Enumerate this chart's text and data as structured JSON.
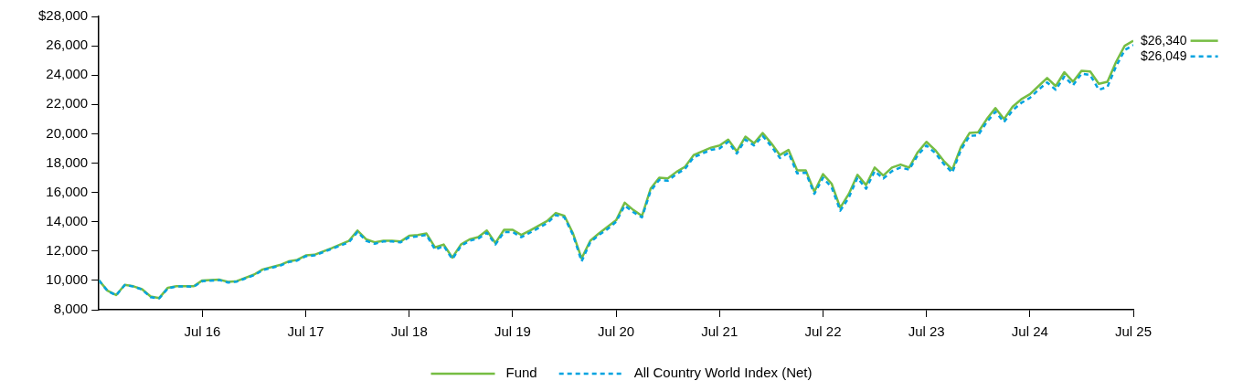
{
  "chart_data": {
    "type": "line",
    "x": [
      "2015-07",
      "2015-08",
      "2015-09",
      "2015-10",
      "2015-11",
      "2015-12",
      "2016-01",
      "2016-02",
      "2016-03",
      "2016-04",
      "2016-05",
      "2016-06",
      "2016-07",
      "2016-09",
      "2016-10",
      "2016-11",
      "2017-01",
      "2017-02",
      "2017-04",
      "2017-05",
      "2017-06",
      "2017-07",
      "2017-08",
      "2017-10",
      "2017-12",
      "2018-01",
      "2018-02",
      "2018-03",
      "2018-04",
      "2018-05",
      "2018-06",
      "2018-07",
      "2018-08",
      "2018-09",
      "2018-10",
      "2018-11",
      "2018-12",
      "2019-01",
      "2019-02",
      "2019-03",
      "2019-04",
      "2019-05",
      "2019-06",
      "2019-07",
      "2019-08",
      "2019-09",
      "2019-11",
      "2019-12",
      "2020-01",
      "2020-02",
      "2020-03",
      "2020-04",
      "2020-05",
      "2020-06",
      "2020-07",
      "2020-08",
      "2020-09",
      "2020-10",
      "2020-11",
      "2020-12",
      "2021-01",
      "2021-02",
      "2021-03",
      "2021-04",
      "2021-05",
      "2021-06",
      "2021-07",
      "2021-08",
      "2021-09",
      "2021-10",
      "2021-11",
      "2021-12",
      "2022-01",
      "2022-02",
      "2022-03",
      "2022-04",
      "2022-05",
      "2022-06",
      "2022-07",
      "2022-08",
      "2022-09",
      "2022-10",
      "2022-11",
      "2022-12",
      "2023-01",
      "2023-02",
      "2023-03",
      "2023-04",
      "2023-05",
      "2023-06",
      "2023-07",
      "2023-08",
      "2023-09",
      "2023-10",
      "2023-11",
      "2023-12",
      "2024-01",
      "2024-02",
      "2024-03",
      "2024-04",
      "2024-05",
      "2024-06",
      "2024-07",
      "2024-08",
      "2024-09",
      "2024-10",
      "2024-11",
      "2024-12",
      "2025-01",
      "2025-02",
      "2025-03",
      "2025-04",
      "2025-05",
      "2025-06",
      "2025-07"
    ],
    "series": [
      {
        "name": "Fund",
        "color": "#76bd43",
        "line_style": "solid",
        "values": [
          10000,
          9300,
          9000,
          9700,
          9600,
          9400,
          8900,
          8800,
          9500,
          9600,
          9600,
          9600,
          10000,
          10050,
          9900,
          9950,
          10400,
          10750,
          11050,
          11300,
          11400,
          11700,
          11750,
          12200,
          12700,
          13400,
          12800,
          12600,
          12700,
          12700,
          12650,
          13050,
          13100,
          13200,
          12250,
          12450,
          11550,
          12450,
          12800,
          12950,
          13400,
          12550,
          13450,
          13450,
          13100,
          13400,
          14050,
          14600,
          14400,
          13200,
          11500,
          12700,
          13200,
          13650,
          14100,
          15300,
          14800,
          14400,
          16250,
          17000,
          16950,
          17400,
          17750,
          18550,
          18800,
          19050,
          19200,
          19600,
          18800,
          19800,
          19350,
          20050,
          19350,
          18550,
          18900,
          17500,
          17500,
          16050,
          17250,
          16600,
          14950,
          15900,
          17200,
          16500,
          17700,
          17150,
          17700,
          17900,
          17700,
          18750,
          19450,
          18900,
          18150,
          17550,
          19100,
          20050,
          20100,
          21000,
          21750,
          21000,
          21850,
          22350,
          22700,
          23250,
          23800,
          23250,
          24200,
          23550,
          24300,
          24250,
          23400,
          23550,
          24900,
          26000,
          26340
        ]
      },
      {
        "name": "All Country World Index (Net)",
        "color": "#00a3e0",
        "line_style": "dashed",
        "values": [
          10000,
          9280,
          8980,
          9680,
          9580,
          9380,
          8850,
          8780,
          9460,
          9580,
          9600,
          9560,
          9950,
          10020,
          9850,
          9920,
          10350,
          10700,
          11000,
          11250,
          11350,
          11650,
          11700,
          12150,
          12600,
          13300,
          12700,
          12500,
          12650,
          12650,
          12600,
          12950,
          13000,
          13100,
          12100,
          12350,
          11450,
          12350,
          12700,
          12850,
          13250,
          12450,
          13300,
          13300,
          12950,
          13250,
          13900,
          14450,
          14300,
          13100,
          11300,
          12600,
          13100,
          13500,
          14000,
          15100,
          14650,
          14300,
          16100,
          16850,
          16800,
          17250,
          17600,
          18400,
          18650,
          18900,
          19000,
          19450,
          18650,
          19600,
          19200,
          19850,
          19150,
          18350,
          18700,
          17300,
          17350,
          15900,
          17000,
          16350,
          14750,
          15650,
          17000,
          16250,
          17450,
          16950,
          17450,
          17700,
          17550,
          18550,
          19200,
          18700,
          17950,
          17350,
          18900,
          19850,
          19900,
          20800,
          21500,
          20800,
          21600,
          22100,
          22450,
          23000,
          23500,
          23000,
          23900,
          23300,
          24100,
          24000,
          23000,
          23200,
          24600,
          25700,
          26049
        ]
      }
    ],
    "xlim": [
      "2015-07",
      "2025-07"
    ],
    "xticks": [
      {
        "value": "2016-07",
        "label": "Jul 16"
      },
      {
        "value": "2017-07",
        "label": "Jul 17"
      },
      {
        "value": "2018-07",
        "label": "Jul 18"
      },
      {
        "value": "2019-07",
        "label": "Jul 19"
      },
      {
        "value": "2020-07",
        "label": "Jul 20"
      },
      {
        "value": "2021-07",
        "label": "Jul 21"
      },
      {
        "value": "2022-07",
        "label": "Jul 22"
      },
      {
        "value": "2023-07",
        "label": "Jul 23"
      },
      {
        "value": "2024-07",
        "label": "Jul 24"
      },
      {
        "value": "2025-07",
        "label": "Jul 25"
      }
    ],
    "ylim": [
      8000,
      28000
    ],
    "yticks": [
      {
        "value": 8000,
        "label": "8,000"
      },
      {
        "value": 10000,
        "label": "10,000"
      },
      {
        "value": 12000,
        "label": "12,000"
      },
      {
        "value": 14000,
        "label": "14,000"
      },
      {
        "value": 16000,
        "label": "16,000"
      },
      {
        "value": 18000,
        "label": "18,000"
      },
      {
        "value": 20000,
        "label": "20,000"
      },
      {
        "value": 22000,
        "label": "22,000"
      },
      {
        "value": 24000,
        "label": "24,000"
      },
      {
        "value": 26000,
        "label": "26,000"
      },
      {
        "value": 28000,
        "label": "$28,000"
      }
    ],
    "annotations": [
      {
        "text": "$26,340",
        "x": "2025-07",
        "y": 26340
      },
      {
        "text": "$26,049",
        "x": "2025-07",
        "y": 26049
      }
    ],
    "legend": "bottom",
    "marker": "none"
  }
}
